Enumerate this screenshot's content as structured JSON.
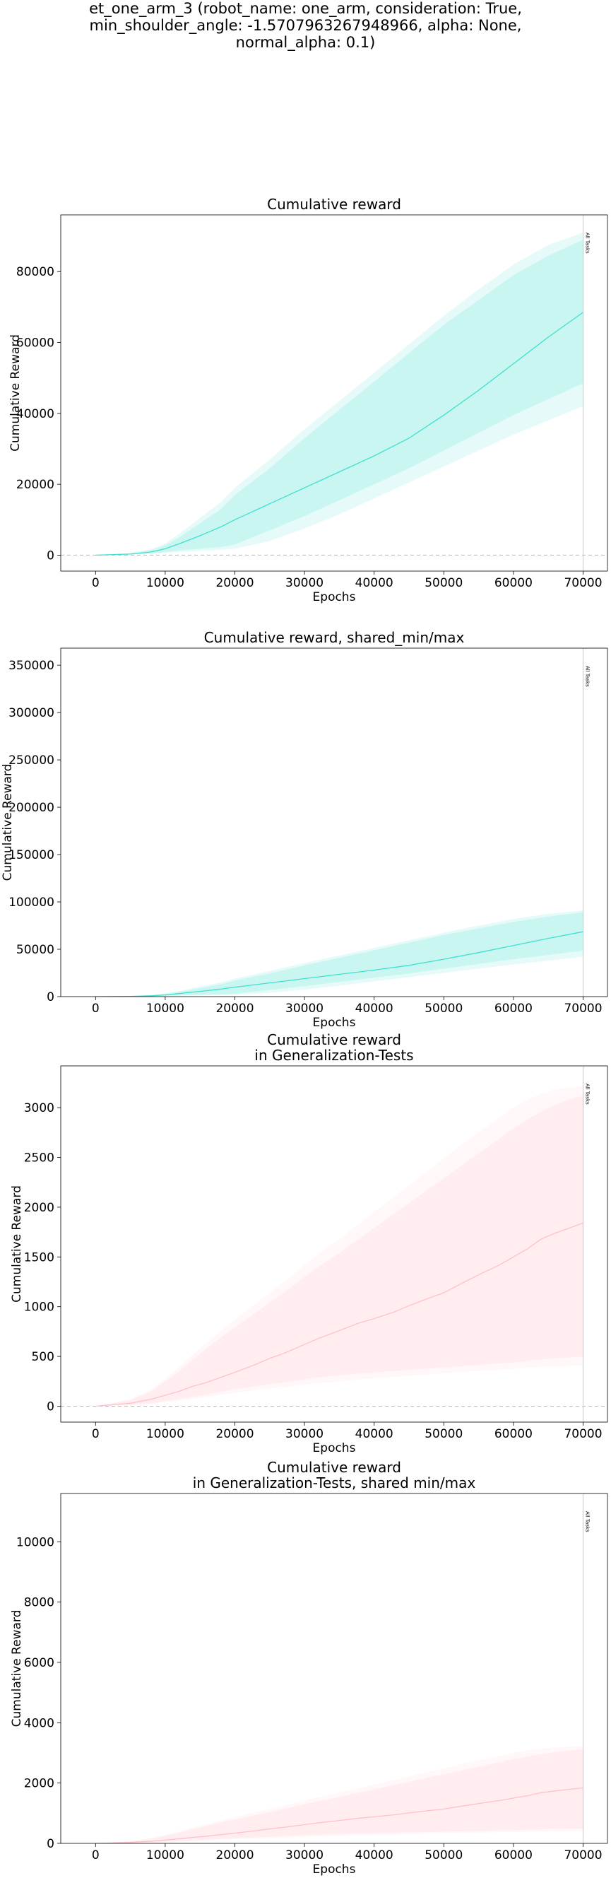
{
  "suptitle": "et_one_arm_3 (robot_name: one_arm, consideration: True,\nmin_shoulder_angle: -1.5707963267948966, alpha: None,\nnormal_alpha: 0.1)",
  "chart_data": [
    {
      "type": "line",
      "title": "Cumulative reward",
      "xlabel": "Epochs",
      "ylabel": "Cumulative Reward",
      "xlim": [
        -5000,
        73500
      ],
      "ylim": [
        -4500,
        96000
      ],
      "xticks": [
        0,
        10000,
        20000,
        30000,
        40000,
        50000,
        60000,
        70000
      ],
      "yticks": [
        0,
        20000,
        40000,
        60000,
        80000
      ],
      "zero_line": true,
      "vline": {
        "x": 70000,
        "label": "All Tasks"
      },
      "color": "#40e0d0",
      "series": [
        {
          "x": [
            0,
            5000,
            8000,
            10000,
            12000,
            15000,
            18000,
            20000,
            25000,
            30000,
            35000,
            40000,
            45000,
            50000,
            55000,
            60000,
            65000,
            70000
          ],
          "values": [
            0,
            300,
            900,
            1800,
            3200,
            5500,
            8000,
            10000,
            14500,
            19000,
            23500,
            28000,
            33000,
            39500,
            46500,
            54000,
            61500,
            68500
          ],
          "band_inner_low": [
            0,
            200,
            500,
            900,
            1300,
            1800,
            2300,
            3000,
            7000,
            11000,
            15500,
            20000,
            24500,
            29500,
            34500,
            39500,
            44000,
            48500
          ],
          "band_inner_high": [
            0,
            500,
            1400,
            2800,
            5000,
            9000,
            13000,
            17000,
            24500,
            33000,
            41000,
            49000,
            57000,
            65000,
            72000,
            79000,
            84500,
            89000
          ],
          "band_outer_low": [
            0,
            150,
            300,
            600,
            900,
            1200,
            1500,
            1800,
            4000,
            7500,
            11500,
            16000,
            20500,
            25000,
            29500,
            34000,
            38000,
            42000
          ],
          "band_outer_high": [
            0,
            600,
            1700,
            3300,
            6000,
            10500,
            15000,
            19000,
            27000,
            35500,
            43500,
            51500,
            59500,
            67500,
            75000,
            82000,
            87500,
            91000
          ]
        }
      ]
    },
    {
      "type": "line",
      "title": "Cumulative reward, shared_min/max",
      "xlabel": "Epochs",
      "ylabel": "Cumulative Reward",
      "xlim": [
        -5000,
        73500
      ],
      "ylim": [
        0,
        368000
      ],
      "xticks": [
        0,
        10000,
        20000,
        30000,
        40000,
        50000,
        60000,
        70000
      ],
      "yticks": [
        0,
        50000,
        100000,
        150000,
        200000,
        250000,
        300000,
        350000
      ],
      "zero_line": false,
      "vline": {
        "x": 70000,
        "label": "All Tasks"
      },
      "color": "#40e0d0",
      "series": [
        {
          "x": [
            0,
            5000,
            8000,
            10000,
            12000,
            15000,
            18000,
            20000,
            25000,
            30000,
            35000,
            40000,
            45000,
            50000,
            55000,
            60000,
            65000,
            70000
          ],
          "values": [
            0,
            300,
            900,
            1800,
            3200,
            5500,
            8000,
            10000,
            14500,
            19000,
            23500,
            28000,
            33000,
            39500,
            46500,
            54000,
            61500,
            68500
          ],
          "band_inner_low": [
            0,
            200,
            500,
            900,
            1300,
            1800,
            2300,
            3000,
            7000,
            11000,
            15500,
            20000,
            24500,
            29500,
            34500,
            39500,
            44000,
            48500
          ],
          "band_inner_high": [
            0,
            500,
            1400,
            2800,
            5000,
            9000,
            13000,
            17000,
            24500,
            33000,
            41000,
            49000,
            57000,
            65000,
            72000,
            79000,
            84500,
            89000
          ],
          "band_outer_low": [
            0,
            150,
            300,
            600,
            900,
            1200,
            1500,
            1800,
            4000,
            7500,
            11500,
            16000,
            20500,
            25000,
            29500,
            34000,
            38000,
            42000
          ],
          "band_outer_high": [
            0,
            600,
            1700,
            3300,
            6000,
            10500,
            15000,
            19000,
            27000,
            35500,
            43500,
            51500,
            59500,
            67500,
            75000,
            82000,
            87500,
            91000
          ]
        }
      ]
    },
    {
      "type": "line",
      "title": "Cumulative reward\nin Generalization-Tests",
      "xlabel": "Epochs",
      "ylabel": "Cumulative Reward",
      "xlim": [
        -5000,
        73500
      ],
      "ylim": [
        -160,
        3420
      ],
      "xticks": [
        0,
        10000,
        20000,
        30000,
        40000,
        50000,
        60000,
        70000
      ],
      "yticks": [
        0,
        500,
        1000,
        1500,
        2000,
        2500,
        3000
      ],
      "zero_line": true,
      "vline": {
        "x": 70000,
        "label": "All Tasks"
      },
      "color": "#ffc0cb",
      "series": [
        {
          "x": [
            0,
            5000,
            8000,
            10000,
            12000,
            14000,
            16000,
            18000,
            20000,
            23000,
            25000,
            27000,
            28000,
            30000,
            32000,
            35000,
            38000,
            40000,
            43000,
            45000,
            48000,
            50000,
            53000,
            55000,
            58000,
            60000,
            62000,
            64000,
            66000,
            68000,
            70000
          ],
          "values": [
            0,
            30,
            70,
            110,
            150,
            200,
            240,
            290,
            340,
            420,
            480,
            530,
            560,
            620,
            680,
            760,
            840,
            880,
            950,
            1010,
            1090,
            1140,
            1250,
            1320,
            1420,
            1500,
            1580,
            1680,
            1740,
            1790,
            1840
          ],
          "band_inner_low": [
            0,
            15,
            30,
            50,
            70,
            95,
            120,
            145,
            170,
            200,
            220,
            240,
            250,
            270,
            290,
            310,
            330,
            340,
            355,
            365,
            380,
            390,
            405,
            415,
            430,
            440,
            455,
            470,
            480,
            490,
            500
          ],
          "band_inner_high": [
            0,
            60,
            150,
            250,
            350,
            470,
            580,
            690,
            790,
            940,
            1040,
            1140,
            1190,
            1300,
            1400,
            1540,
            1690,
            1790,
            1940,
            2040,
            2190,
            2290,
            2440,
            2540,
            2690,
            2790,
            2880,
            2960,
            3030,
            3080,
            3120
          ],
          "band_outer_low": [
            0,
            10,
            25,
            40,
            55,
            75,
            95,
            115,
            135,
            160,
            175,
            190,
            200,
            215,
            230,
            250,
            270,
            280,
            295,
            305,
            320,
            330,
            345,
            355,
            365,
            375,
            385,
            395,
            400,
            405,
            410
          ],
          "band_outer_high": [
            0,
            70,
            170,
            280,
            390,
            520,
            640,
            760,
            870,
            1030,
            1140,
            1250,
            1300,
            1420,
            1530,
            1680,
            1840,
            1950,
            2110,
            2220,
            2380,
            2490,
            2650,
            2750,
            2900,
            3000,
            3080,
            3140,
            3180,
            3200,
            3220
          ]
        }
      ]
    },
    {
      "type": "line",
      "title": "Cumulative reward\nin Generalization-Tests, shared min/max",
      "xlabel": "Epochs",
      "ylabel": "Cumulative Reward",
      "xlim": [
        -5000,
        73500
      ],
      "ylim": [
        0,
        11600
      ],
      "xticks": [
        0,
        10000,
        20000,
        30000,
        40000,
        50000,
        60000,
        70000
      ],
      "yticks": [
        0,
        2000,
        4000,
        6000,
        8000,
        10000
      ],
      "zero_line": false,
      "vline": {
        "x": 70000,
        "label": "All Tasks"
      },
      "color": "#ffc0cb",
      "series": [
        {
          "x": [
            0,
            5000,
            8000,
            10000,
            12000,
            14000,
            16000,
            18000,
            20000,
            23000,
            25000,
            27000,
            28000,
            30000,
            32000,
            35000,
            38000,
            40000,
            43000,
            45000,
            48000,
            50000,
            53000,
            55000,
            58000,
            60000,
            62000,
            64000,
            66000,
            68000,
            70000
          ],
          "values": [
            0,
            30,
            70,
            110,
            150,
            200,
            240,
            290,
            340,
            420,
            480,
            530,
            560,
            620,
            680,
            760,
            840,
            880,
            950,
            1010,
            1090,
            1140,
            1250,
            1320,
            1420,
            1500,
            1580,
            1680,
            1740,
            1790,
            1840
          ],
          "band_inner_low": [
            0,
            15,
            30,
            50,
            70,
            95,
            120,
            145,
            170,
            200,
            220,
            240,
            250,
            270,
            290,
            310,
            330,
            340,
            355,
            365,
            380,
            390,
            405,
            415,
            430,
            440,
            455,
            470,
            480,
            490,
            500
          ],
          "band_inner_high": [
            0,
            60,
            150,
            250,
            350,
            470,
            580,
            690,
            790,
            940,
            1040,
            1140,
            1190,
            1300,
            1400,
            1540,
            1690,
            1790,
            1940,
            2040,
            2190,
            2290,
            2440,
            2540,
            2690,
            2790,
            2880,
            2960,
            3030,
            3080,
            3120
          ],
          "band_outer_low": [
            0,
            10,
            25,
            40,
            55,
            75,
            95,
            115,
            135,
            160,
            175,
            190,
            200,
            215,
            230,
            250,
            270,
            280,
            295,
            305,
            320,
            330,
            345,
            355,
            365,
            375,
            385,
            395,
            400,
            405,
            410
          ],
          "band_outer_high": [
            0,
            70,
            170,
            280,
            390,
            520,
            640,
            760,
            870,
            1030,
            1140,
            1250,
            1300,
            1420,
            1530,
            1680,
            1840,
            1950,
            2110,
            2220,
            2380,
            2490,
            2650,
            2750,
            2900,
            3000,
            3080,
            3140,
            3180,
            3200,
            3220
          ]
        }
      ]
    }
  ]
}
